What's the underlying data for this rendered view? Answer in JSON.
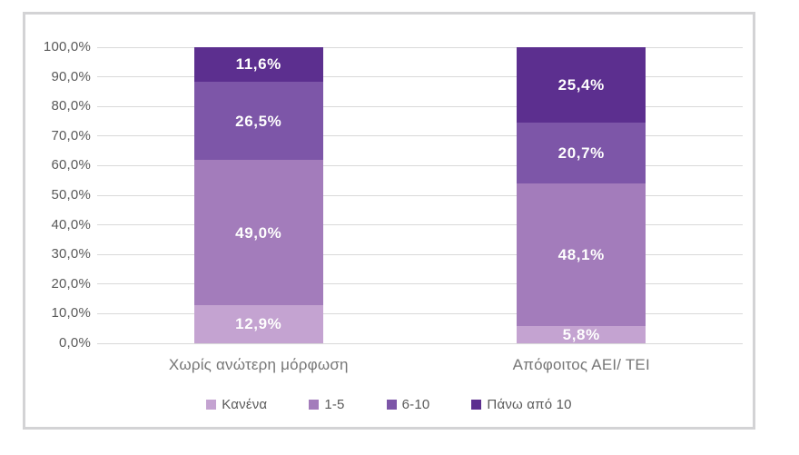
{
  "page": {
    "background_color": "#ffffff",
    "frame_border_color": "#d3d3d5"
  },
  "chart_data": {
    "type": "bar",
    "stacked": true,
    "title": "",
    "xlabel": "",
    "ylabel": "",
    "categories": [
      "Χωρίς ανώτερη μόρφωση",
      "Απόφοιτος ΑΕΙ/ ΤΕΙ"
    ],
    "series": [
      {
        "name": "Κανένα",
        "color": "#c4a3d1",
        "values": [
          12.9,
          5.8
        ],
        "data_labels": [
          "12,9%",
          "5,8%"
        ]
      },
      {
        "name": "1-5",
        "color": "#a37cbb",
        "values": [
          49.0,
          48.1
        ],
        "data_labels": [
          "49,0%",
          "48,1%"
        ]
      },
      {
        "name": "6-10",
        "color": "#7d56a8",
        "values": [
          26.5,
          20.7
        ],
        "data_labels": [
          "26,5%",
          "20,7%"
        ]
      },
      {
        "name": "Πάνω από 10",
        "color": "#5c2f8f",
        "values": [
          11.6,
          25.4
        ],
        "data_labels": [
          "11,6%",
          "25,4%"
        ]
      }
    ],
    "ylim": [
      0,
      100
    ],
    "y_tick_step": 10,
    "y_tick_labels": [
      "0,0%",
      "10,0%",
      "20,0%",
      "30,0%",
      "40,0%",
      "50,0%",
      "60,0%",
      "70,0%",
      "80,0%",
      "90,0%",
      "100,0%"
    ],
    "grid": true,
    "gridline_color": "#d9d9d9",
    "axis_tick_color": "#595959",
    "category_label_color": "#767676",
    "data_label_color": "#ffffff",
    "legend_position": "bottom",
    "legend_text_color": "#595959"
  }
}
